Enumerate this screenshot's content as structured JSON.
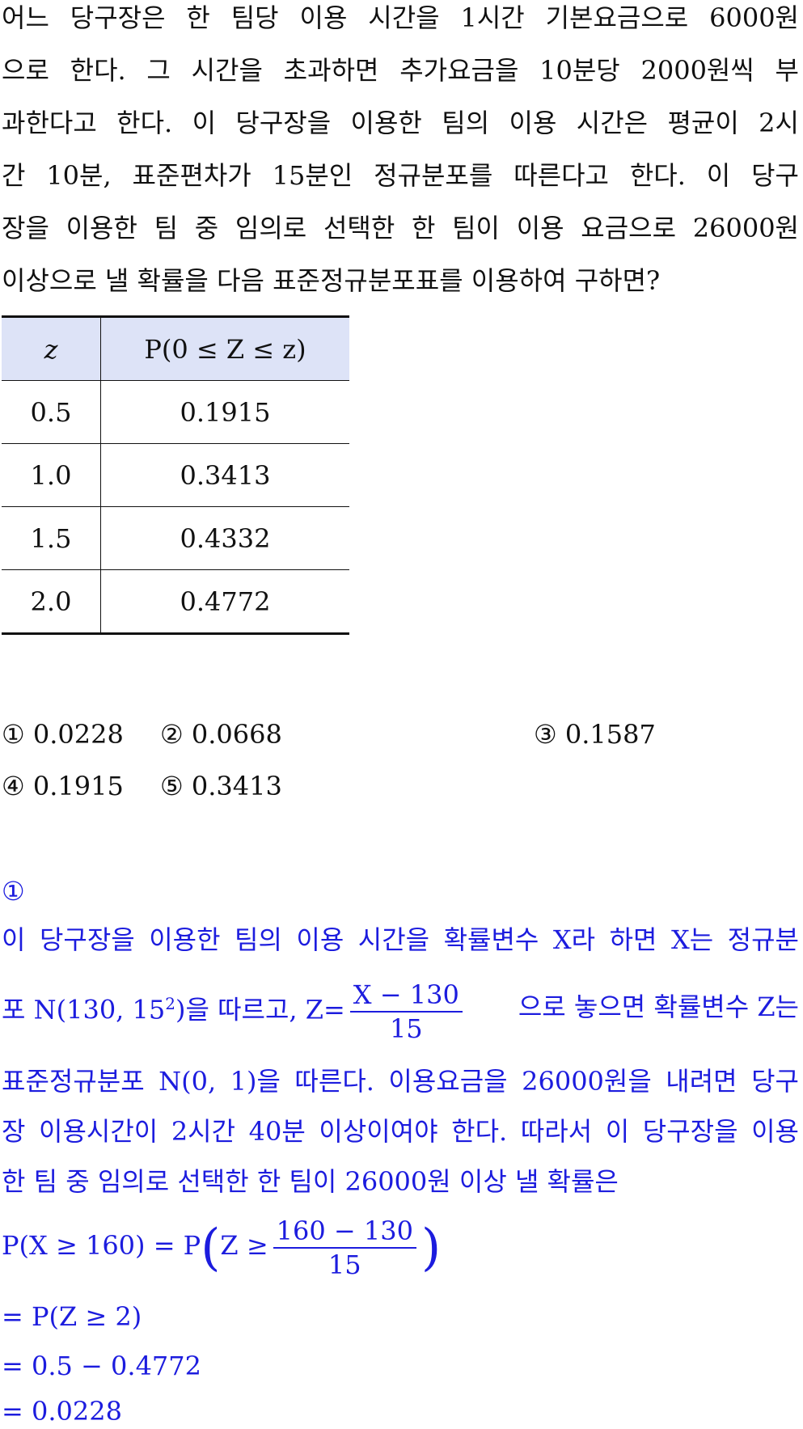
{
  "question": {
    "lines": [
      "어느 당구장은 한 팀당 이용 시간을 1시간 기본요금으로 6000원",
      "으로 한다. 그 시간을 초과하면 추가요금을 10분당 2000원씩 부",
      "과한다고 한다. 이 당구장을 이용한 팀의 이용 시간은 평균이 2시",
      "간 10분, 표준편차가 15분인 정규분포를 따른다고 한다. 이 당구",
      "장을 이용한 팀 중 임의로 선택한 한 팀이 이용 요금으로 26000원",
      "이상으로 낼 확률을 다음 표준정규분포표를 이용하여 구하면?"
    ]
  },
  "table": {
    "header": [
      "z",
      "P(0 ≤ Z ≤ z)"
    ],
    "rows": [
      [
        "0.5",
        "0.1915"
      ],
      [
        "1.0",
        "0.3413"
      ],
      [
        "1.5",
        "0.4332"
      ],
      [
        "2.0",
        "0.4772"
      ]
    ]
  },
  "choices": [
    "① 0.0228",
    "② 0.0668",
    "③ 0.1587",
    "④ 0.1915",
    "⑤ 0.3413"
  ],
  "solution": {
    "answer": "①",
    "line1": "이 당구장을 이용한 팀의 이용 시간을 확률변수 X라 하면 X는 정규분",
    "line2": {
      "before": "포 N(130, 15",
      "exponent": "2",
      "middle": ")을 따르고, Z=",
      "numerator": "X − 130",
      "denominator": "15",
      "after": "으로 놓으면 확률변수 Z는"
    },
    "line3": "표준정규분포 N(0, 1)을 따른다. 이용요금을 26000원을 내려면 당구",
    "line4": "장 이용시간이 2시간 40분 이상이여야 한다. 따라서 이 당구장을 이용",
    "line5": "한 팀 중 임의로 선택한 한 팀이 26000원 이상 낼 확률은",
    "formula": {
      "left": "P(X ≥ 160) = P",
      "open": "(",
      "inner": "Z ≥",
      "numerator": "160 − 130",
      "denominator": "15",
      "close": ")"
    },
    "steps": [
      "= P(Z ≥ 2)",
      "= 0.5 − 0.4772",
      "= 0.0228"
    ]
  }
}
